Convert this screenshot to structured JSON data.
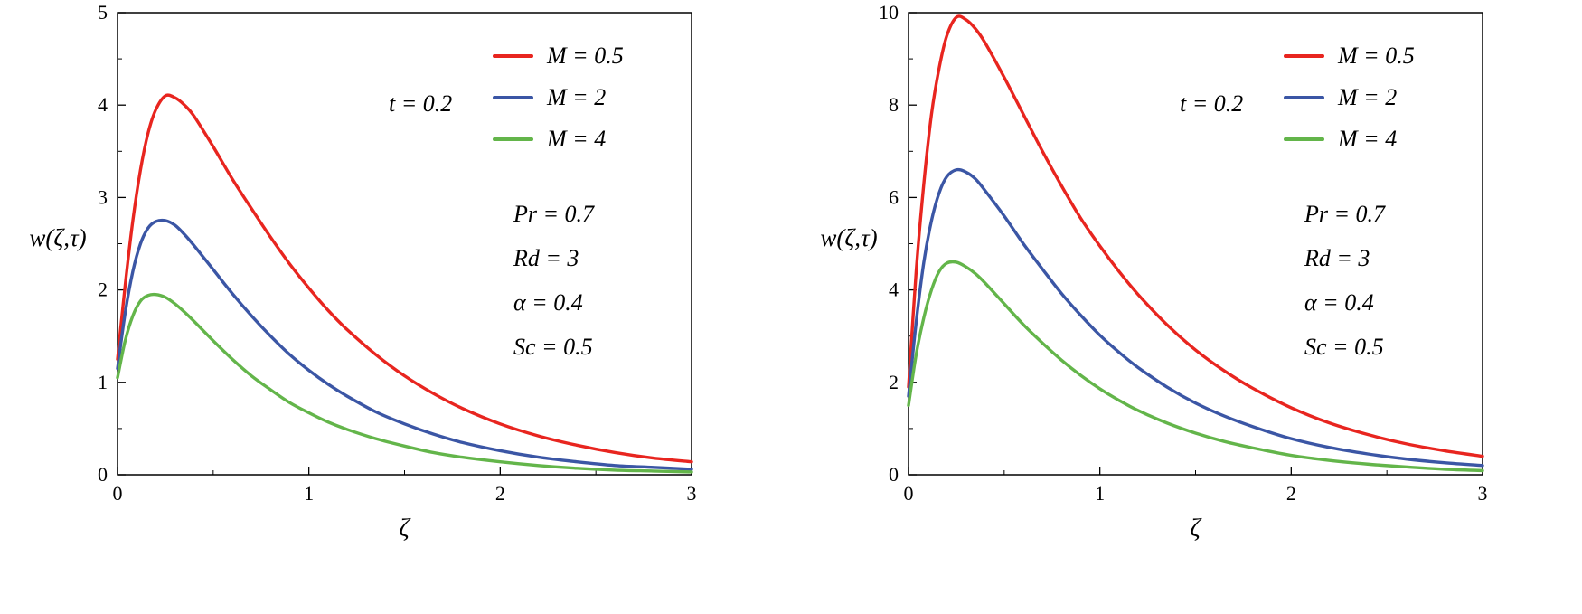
{
  "chart_data": [
    {
      "id": "left-panel",
      "type": "line",
      "xlabel": "ζ",
      "ylabel": "w(ζ,τ)",
      "xlim": [
        0,
        3
      ],
      "ylim": [
        0,
        5
      ],
      "xticks": [
        0,
        1,
        2,
        3
      ],
      "yticks": [
        0,
        1,
        2,
        3,
        4,
        5
      ],
      "grid": false,
      "legend_position": "upper-right-inside",
      "annotations": {
        "t": "t = 0.2",
        "params": [
          "Pr = 0.7",
          "Rd = 3",
          "α = 0.4",
          "Sc = 0.5"
        ]
      },
      "x": [
        0,
        0.04,
        0.08,
        0.12,
        0.16,
        0.2,
        0.25,
        0.3,
        0.35,
        0.4,
        0.5,
        0.6,
        0.7,
        0.8,
        0.9,
        1,
        1.1,
        1.2,
        1.35,
        1.5,
        1.65,
        1.8,
        2,
        2.2,
        2.4,
        2.6,
        2.8,
        3
      ],
      "series": [
        {
          "name": "M = 0.5",
          "color": "#e8251f",
          "values": [
            1.25,
            2.05,
            2.75,
            3.3,
            3.7,
            3.95,
            4.1,
            4.08,
            4.0,
            3.88,
            3.55,
            3.2,
            2.88,
            2.57,
            2.28,
            2.02,
            1.78,
            1.57,
            1.3,
            1.07,
            0.88,
            0.72,
            0.55,
            0.42,
            0.32,
            0.24,
            0.18,
            0.14
          ]
        },
        {
          "name": "M = 2",
          "color": "#3b56a5",
          "values": [
            1.15,
            1.75,
            2.2,
            2.5,
            2.67,
            2.74,
            2.75,
            2.7,
            2.6,
            2.48,
            2.22,
            1.96,
            1.72,
            1.5,
            1.3,
            1.13,
            0.98,
            0.85,
            0.68,
            0.55,
            0.44,
            0.35,
            0.26,
            0.19,
            0.14,
            0.1,
            0.08,
            0.06
          ]
        },
        {
          "name": "M = 4",
          "color": "#63b54a",
          "values": [
            1.05,
            1.45,
            1.72,
            1.88,
            1.94,
            1.95,
            1.92,
            1.85,
            1.76,
            1.66,
            1.45,
            1.25,
            1.07,
            0.92,
            0.78,
            0.67,
            0.57,
            0.49,
            0.39,
            0.31,
            0.24,
            0.19,
            0.14,
            0.1,
            0.07,
            0.05,
            0.04,
            0.03
          ]
        }
      ]
    },
    {
      "id": "right-panel",
      "type": "line",
      "xlabel": "ζ",
      "ylabel": "w(ζ,τ)",
      "xlim": [
        0,
        3
      ],
      "ylim": [
        0,
        10
      ],
      "xticks": [
        0,
        1,
        2,
        3
      ],
      "yticks": [
        0,
        2,
        4,
        6,
        8,
        10
      ],
      "grid": false,
      "legend_position": "upper-right-inside",
      "annotations": {
        "t": "t = 0.2",
        "params": [
          "Pr = 0.7",
          "Rd = 3",
          "α = 0.4",
          "Sc = 0.5"
        ]
      },
      "x": [
        0,
        0.04,
        0.08,
        0.12,
        0.16,
        0.2,
        0.25,
        0.3,
        0.35,
        0.4,
        0.5,
        0.6,
        0.7,
        0.8,
        0.9,
        1,
        1.1,
        1.2,
        1.35,
        1.5,
        1.65,
        1.8,
        2,
        2.2,
        2.4,
        2.6,
        2.8,
        3
      ],
      "series": [
        {
          "name": "M = 0.5",
          "color": "#e8251f",
          "values": [
            1.9,
            4.4,
            6.3,
            7.8,
            8.8,
            9.5,
            9.9,
            9.85,
            9.65,
            9.35,
            8.6,
            7.8,
            7.0,
            6.25,
            5.55,
            4.95,
            4.4,
            3.9,
            3.25,
            2.7,
            2.25,
            1.87,
            1.45,
            1.12,
            0.87,
            0.67,
            0.52,
            0.4
          ]
        },
        {
          "name": "M = 2",
          "color": "#3b56a5",
          "values": [
            1.7,
            3.3,
            4.6,
            5.5,
            6.1,
            6.45,
            6.6,
            6.55,
            6.4,
            6.15,
            5.6,
            5.0,
            4.45,
            3.92,
            3.45,
            3.02,
            2.65,
            2.32,
            1.9,
            1.55,
            1.27,
            1.04,
            0.78,
            0.59,
            0.45,
            0.34,
            0.26,
            0.2
          ]
        },
        {
          "name": "M = 4",
          "color": "#63b54a",
          "values": [
            1.5,
            2.6,
            3.4,
            4.0,
            4.4,
            4.58,
            4.6,
            4.5,
            4.35,
            4.15,
            3.7,
            3.25,
            2.85,
            2.48,
            2.15,
            1.86,
            1.61,
            1.39,
            1.12,
            0.9,
            0.72,
            0.58,
            0.42,
            0.31,
            0.23,
            0.17,
            0.12,
            0.09
          ]
        }
      ]
    }
  ]
}
